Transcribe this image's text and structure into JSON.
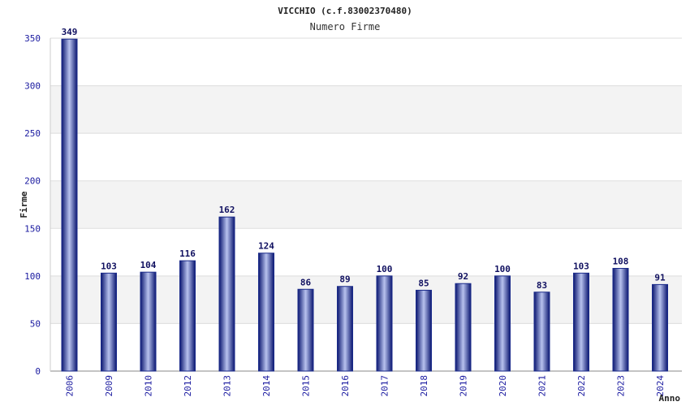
{
  "chart_data": {
    "type": "bar",
    "title": "VICCHIO (c.f.83002370480)",
    "subtitle": "Numero Firme",
    "xlabel": "Anno",
    "ylabel": "Firme",
    "ylim": [
      0,
      350
    ],
    "yticks": [
      0,
      50,
      100,
      150,
      200,
      250,
      300,
      350
    ],
    "grid": true,
    "categories": [
      "2006",
      "2009",
      "2010",
      "2012",
      "2013",
      "2014",
      "2015",
      "2016",
      "2017",
      "2018",
      "2019",
      "2020",
      "2021",
      "2022",
      "2023",
      "2024"
    ],
    "values": [
      349,
      103,
      104,
      116,
      162,
      124,
      86,
      89,
      100,
      85,
      92,
      100,
      83,
      103,
      108,
      91
    ],
    "bar_color": "#1a2a8a"
  }
}
